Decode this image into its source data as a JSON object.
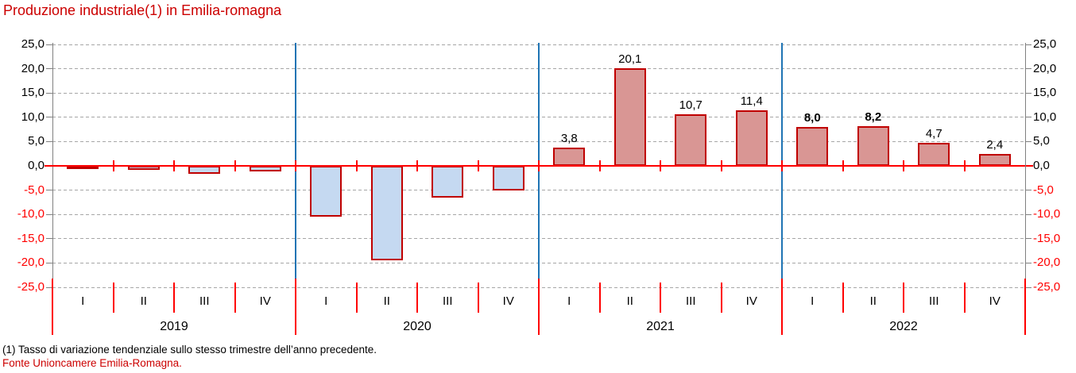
{
  "title": "Produzione industriale(1) in Emilia-romagna",
  "footnote": "(1) Tasso di variazione tendenziale sullo stesso trimestre dell’anno precedente.",
  "source": "Fonte Unioncamere Emilia-Romagna.",
  "chart_data": {
    "type": "bar",
    "title": "Produzione industriale(1) in Emilia-romagna",
    "ylim": [
      -25,
      25
    ],
    "ytick_step": 5,
    "grid": true,
    "legend": false,
    "year_groups": [
      "2019",
      "2020",
      "2021",
      "2022"
    ],
    "categories": [
      "I",
      "II",
      "III",
      "IV",
      "I",
      "II",
      "III",
      "IV",
      "I",
      "II",
      "III",
      "IV",
      "I",
      "II",
      "III",
      "IV"
    ],
    "points": [
      {
        "year": "2019",
        "quarter": "I",
        "value": -0.5,
        "label": "",
        "bold": false
      },
      {
        "year": "2019",
        "quarter": "II",
        "value": -0.8,
        "label": "",
        "bold": false
      },
      {
        "year": "2019",
        "quarter": "III",
        "value": -1.7,
        "label": "",
        "bold": false
      },
      {
        "year": "2019",
        "quarter": "IV",
        "value": -1.2,
        "label": "",
        "bold": false
      },
      {
        "year": "2020",
        "quarter": "I",
        "value": -10.5,
        "label": "",
        "bold": false
      },
      {
        "year": "2020",
        "quarter": "II",
        "value": -19.5,
        "label": "",
        "bold": false
      },
      {
        "year": "2020",
        "quarter": "III",
        "value": -6.6,
        "label": "",
        "bold": false
      },
      {
        "year": "2020",
        "quarter": "IV",
        "value": -5.1,
        "label": "",
        "bold": false
      },
      {
        "year": "2021",
        "quarter": "I",
        "value": 3.8,
        "label": "3,8",
        "bold": false
      },
      {
        "year": "2021",
        "quarter": "II",
        "value": 20.1,
        "label": "20,1",
        "bold": false
      },
      {
        "year": "2021",
        "quarter": "III",
        "value": 10.7,
        "label": "10,7",
        "bold": false
      },
      {
        "year": "2021",
        "quarter": "IV",
        "value": 11.4,
        "label": "11,4",
        "bold": false
      },
      {
        "year": "2022",
        "quarter": "I",
        "value": 8.0,
        "label": "8,0",
        "bold": true
      },
      {
        "year": "2022",
        "quarter": "II",
        "value": 8.2,
        "label": "8,2",
        "bold": true
      },
      {
        "year": "2022",
        "quarter": "III",
        "value": 4.7,
        "label": "4,7",
        "bold": false
      },
      {
        "year": "2022",
        "quarter": "IV",
        "value": 2.4,
        "label": "2,4",
        "bold": false
      }
    ],
    "y_ticks": [
      {
        "value": 25,
        "label": "25,0"
      },
      {
        "value": 20,
        "label": "20,0"
      },
      {
        "value": 15,
        "label": "15,0"
      },
      {
        "value": 10,
        "label": "10,0"
      },
      {
        "value": 5,
        "label": "5,0"
      },
      {
        "value": 0,
        "label": "0,0"
      },
      {
        "value": -5,
        "label": "-5,0"
      },
      {
        "value": -10,
        "label": "-10,0"
      },
      {
        "value": -15,
        "label": "-15,0"
      },
      {
        "value": -20,
        "label": "-20,0"
      },
      {
        "value": -25,
        "label": "-25,0"
      }
    ],
    "colors": {
      "title": "#CC0000",
      "source": "#CC0000",
      "positive_fill": "#D99694",
      "negative_fill": "#C5D9F1",
      "bar_border": "#C00000",
      "zero_line": "#FF0000",
      "gridline": "#A6A6A6",
      "axis": "#808080",
      "year_separator": "#1F74B4",
      "positive_tick_label": "#000000",
      "negative_tick_label": "#FF0000"
    }
  }
}
